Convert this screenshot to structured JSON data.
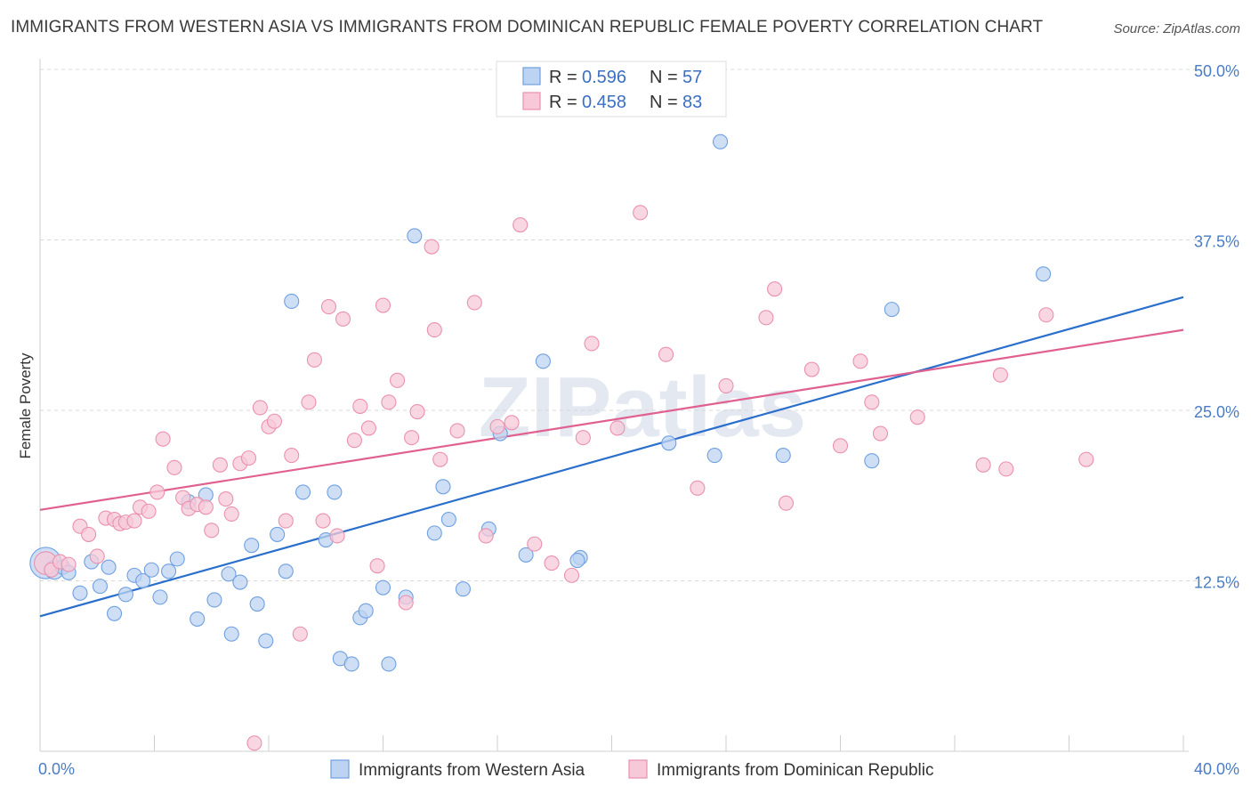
{
  "title": "IMMIGRANTS FROM WESTERN ASIA VS IMMIGRANTS FROM DOMINICAN REPUBLIC FEMALE POVERTY CORRELATION CHART",
  "source": "Source: ZipAtlas.com",
  "watermark": "ZIPatlas",
  "colors": {
    "blue": "#6fa0e0",
    "blue_fill": "#bcd3f2",
    "blue_line": "#2a6fcc",
    "pink": "#ea90b0",
    "pink_fill": "#f7c9d8",
    "pink_line": "#e0608f",
    "grid": "#d8d8d8",
    "tick": "#4a7cc4"
  },
  "legend": {
    "r_label": "R =",
    "n_label": "N =",
    "entries": [
      {
        "r": "0.596",
        "n": "57"
      },
      {
        "r": "0.458",
        "n": "83"
      }
    ]
  },
  "chart_data": {
    "type": "scatter",
    "title": "IMMIGRANTS FROM WESTERN ASIA VS IMMIGRANTS FROM DOMINICAN REPUBLIC FEMALE POVERTY CORRELATION CHART",
    "xlabel": "",
    "ylabel": "Female Poverty",
    "xlim": [
      0,
      40
    ],
    "ylim": [
      0,
      50
    ],
    "x_tick_labels": [
      {
        "value": 0,
        "label": "0.0%"
      },
      {
        "value": 40,
        "label": "40.0%"
      }
    ],
    "y_tick_labels": [
      {
        "value": 12.5,
        "label": "12.5%"
      },
      {
        "value": 25,
        "label": "25.0%"
      },
      {
        "value": 37.5,
        "label": "37.5%"
      },
      {
        "value": 50,
        "label": "50.0%"
      }
    ],
    "x_minor_ticks": [
      0,
      4,
      8,
      12,
      16,
      20,
      24,
      28,
      32,
      36,
      40
    ],
    "grid": true,
    "legend_position": "top-center",
    "series": [
      {
        "name": "Immigrants from Western Asia",
        "r": 0.596,
        "n": 57,
        "trend": [
          [
            0,
            9.9
          ],
          [
            40,
            33.3
          ]
        ],
        "points": [
          [
            0.2,
            13.8,
            2.2
          ],
          [
            0.5,
            13.3,
            1.3
          ],
          [
            0.8,
            13.5,
            1
          ],
          [
            1.0,
            13.1,
            1
          ],
          [
            1.4,
            11.6,
            1
          ],
          [
            1.8,
            13.9,
            1
          ],
          [
            2.1,
            12.1,
            1
          ],
          [
            2.4,
            13.5,
            1
          ],
          [
            2.6,
            10.1,
            1
          ],
          [
            3.0,
            11.5,
            1
          ],
          [
            3.3,
            12.9,
            1
          ],
          [
            3.6,
            12.5,
            1
          ],
          [
            3.9,
            13.3,
            1
          ],
          [
            4.2,
            11.3,
            1
          ],
          [
            4.5,
            13.2,
            1
          ],
          [
            4.8,
            14.1,
            1
          ],
          [
            5.2,
            18.3,
            1
          ],
          [
            5.5,
            9.7,
            1
          ],
          [
            5.8,
            18.8,
            1
          ],
          [
            6.1,
            11.1,
            1
          ],
          [
            6.6,
            13.0,
            1
          ],
          [
            6.7,
            8.6,
            1
          ],
          [
            7.0,
            12.4,
            1
          ],
          [
            7.4,
            15.1,
            1
          ],
          [
            7.6,
            10.8,
            1
          ],
          [
            7.9,
            8.1,
            1
          ],
          [
            8.3,
            15.9,
            1
          ],
          [
            8.6,
            13.2,
            1
          ],
          [
            8.8,
            33.0,
            1
          ],
          [
            9.2,
            19.0,
            1
          ],
          [
            10.0,
            15.5,
            1
          ],
          [
            10.3,
            19.0,
            1
          ],
          [
            10.5,
            6.8,
            1
          ],
          [
            10.9,
            6.4,
            1
          ],
          [
            11.2,
            9.8,
            1
          ],
          [
            11.4,
            10.3,
            1
          ],
          [
            12.0,
            12.0,
            1
          ],
          [
            12.2,
            6.4,
            1
          ],
          [
            12.8,
            11.3,
            1
          ],
          [
            13.1,
            37.8,
            1
          ],
          [
            13.8,
            16.0,
            1
          ],
          [
            14.1,
            19.4,
            1
          ],
          [
            14.3,
            17.0,
            1
          ],
          [
            14.8,
            11.9,
            1
          ],
          [
            15.7,
            16.3,
            1
          ],
          [
            16.1,
            23.3,
            1
          ],
          [
            17.0,
            14.4,
            1
          ],
          [
            17.6,
            28.6,
            1
          ],
          [
            18.9,
            14.2,
            1
          ],
          [
            18.8,
            14.0,
            1
          ],
          [
            22.0,
            22.6,
            1
          ],
          [
            23.8,
            44.7,
            1
          ],
          [
            23.6,
            21.7,
            1
          ],
          [
            26.0,
            21.7,
            1
          ],
          [
            29.1,
            21.3,
            1
          ],
          [
            29.8,
            32.4,
            1
          ],
          [
            35.1,
            35.0,
            1
          ]
        ]
      },
      {
        "name": "Immigrants from Dominican Republic",
        "r": 0.458,
        "n": 83,
        "trend": [
          [
            0,
            17.7
          ],
          [
            40,
            30.9
          ]
        ],
        "points": [
          [
            0.2,
            13.8,
            1.6
          ],
          [
            0.4,
            13.3,
            1
          ],
          [
            0.7,
            13.9,
            1
          ],
          [
            1.0,
            13.7,
            1
          ],
          [
            1.4,
            16.5,
            1
          ],
          [
            1.7,
            15.9,
            1
          ],
          [
            2.0,
            14.3,
            1
          ],
          [
            2.3,
            17.1,
            1
          ],
          [
            2.6,
            17.0,
            1
          ],
          [
            2.8,
            16.7,
            1
          ],
          [
            3.0,
            16.8,
            1
          ],
          [
            3.3,
            16.9,
            1
          ],
          [
            3.5,
            17.9,
            1
          ],
          [
            3.8,
            17.6,
            1
          ],
          [
            4.1,
            19.0,
            1
          ],
          [
            4.3,
            22.9,
            1
          ],
          [
            4.7,
            20.8,
            1
          ],
          [
            5.0,
            18.6,
            1
          ],
          [
            5.2,
            17.8,
            1
          ],
          [
            5.5,
            18.1,
            1
          ],
          [
            5.8,
            17.9,
            1
          ],
          [
            6.0,
            16.2,
            1
          ],
          [
            6.3,
            21.0,
            1
          ],
          [
            6.5,
            18.5,
            1
          ],
          [
            6.7,
            17.4,
            1
          ],
          [
            7.0,
            21.1,
            1
          ],
          [
            7.3,
            21.5,
            1
          ],
          [
            7.5,
            0.6,
            1
          ],
          [
            7.7,
            25.2,
            1
          ],
          [
            8.0,
            23.8,
            1
          ],
          [
            8.2,
            24.2,
            1
          ],
          [
            8.6,
            16.9,
            1
          ],
          [
            8.8,
            21.7,
            1
          ],
          [
            9.1,
            8.6,
            1
          ],
          [
            9.4,
            25.6,
            1
          ],
          [
            9.6,
            28.7,
            1
          ],
          [
            9.9,
            16.9,
            1
          ],
          [
            10.1,
            32.6,
            1
          ],
          [
            10.4,
            15.8,
            1
          ],
          [
            10.6,
            31.7,
            1
          ],
          [
            11.0,
            22.8,
            1
          ],
          [
            11.2,
            25.3,
            1
          ],
          [
            11.5,
            23.7,
            1
          ],
          [
            11.8,
            13.6,
            1
          ],
          [
            12.0,
            32.7,
            1
          ],
          [
            12.2,
            25.6,
            1
          ],
          [
            12.5,
            27.2,
            1
          ],
          [
            12.8,
            10.9,
            1
          ],
          [
            13.0,
            23.0,
            1
          ],
          [
            13.2,
            24.9,
            1
          ],
          [
            13.7,
            37.0,
            1
          ],
          [
            13.8,
            30.9,
            1
          ],
          [
            14.0,
            21.4,
            1
          ],
          [
            14.6,
            23.5,
            1
          ],
          [
            15.2,
            32.9,
            1
          ],
          [
            15.6,
            15.8,
            1
          ],
          [
            16.0,
            23.8,
            1
          ],
          [
            16.5,
            24.1,
            1
          ],
          [
            16.8,
            38.6,
            1
          ],
          [
            17.3,
            15.2,
            1
          ],
          [
            17.9,
            13.8,
            1
          ],
          [
            18.6,
            12.9,
            1
          ],
          [
            19.0,
            23.0,
            1
          ],
          [
            19.3,
            29.9,
            1
          ],
          [
            20.2,
            23.7,
            1
          ],
          [
            21.0,
            39.5,
            1
          ],
          [
            21.9,
            29.1,
            1
          ],
          [
            23.0,
            19.3,
            1
          ],
          [
            24.0,
            26.8,
            1
          ],
          [
            25.4,
            31.8,
            1
          ],
          [
            25.7,
            33.9,
            1
          ],
          [
            26.1,
            18.2,
            1
          ],
          [
            27.0,
            28.0,
            1
          ],
          [
            28.0,
            22.4,
            1
          ],
          [
            28.7,
            28.6,
            1
          ],
          [
            29.1,
            25.6,
            1
          ],
          [
            29.4,
            23.3,
            1
          ],
          [
            30.7,
            24.5,
            1
          ],
          [
            33.0,
            21.0,
            1
          ],
          [
            33.6,
            27.6,
            1
          ],
          [
            33.8,
            20.7,
            1
          ],
          [
            35.2,
            32.0,
            1
          ],
          [
            36.6,
            21.4,
            1
          ]
        ]
      }
    ]
  }
}
